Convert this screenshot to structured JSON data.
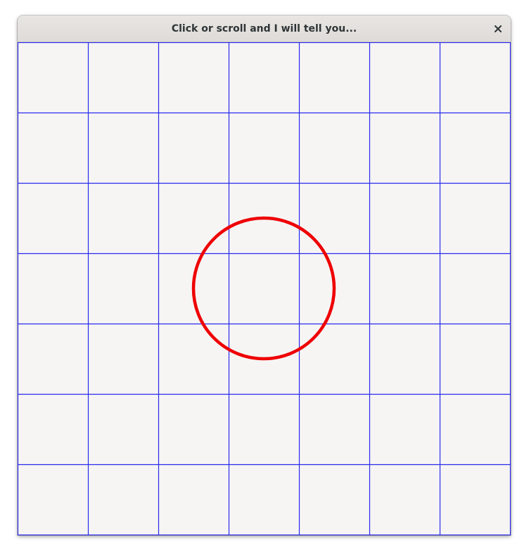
{
  "window": {
    "title": "Click or scroll and I will tell you...",
    "close_icon": "close-icon"
  },
  "canvas": {
    "background_color": "#f6f5f4",
    "grid": {
      "rows": 7,
      "columns": 7,
      "line_color": "#2a2aee"
    },
    "circle": {
      "stroke_color": "#ee0000"
    }
  }
}
